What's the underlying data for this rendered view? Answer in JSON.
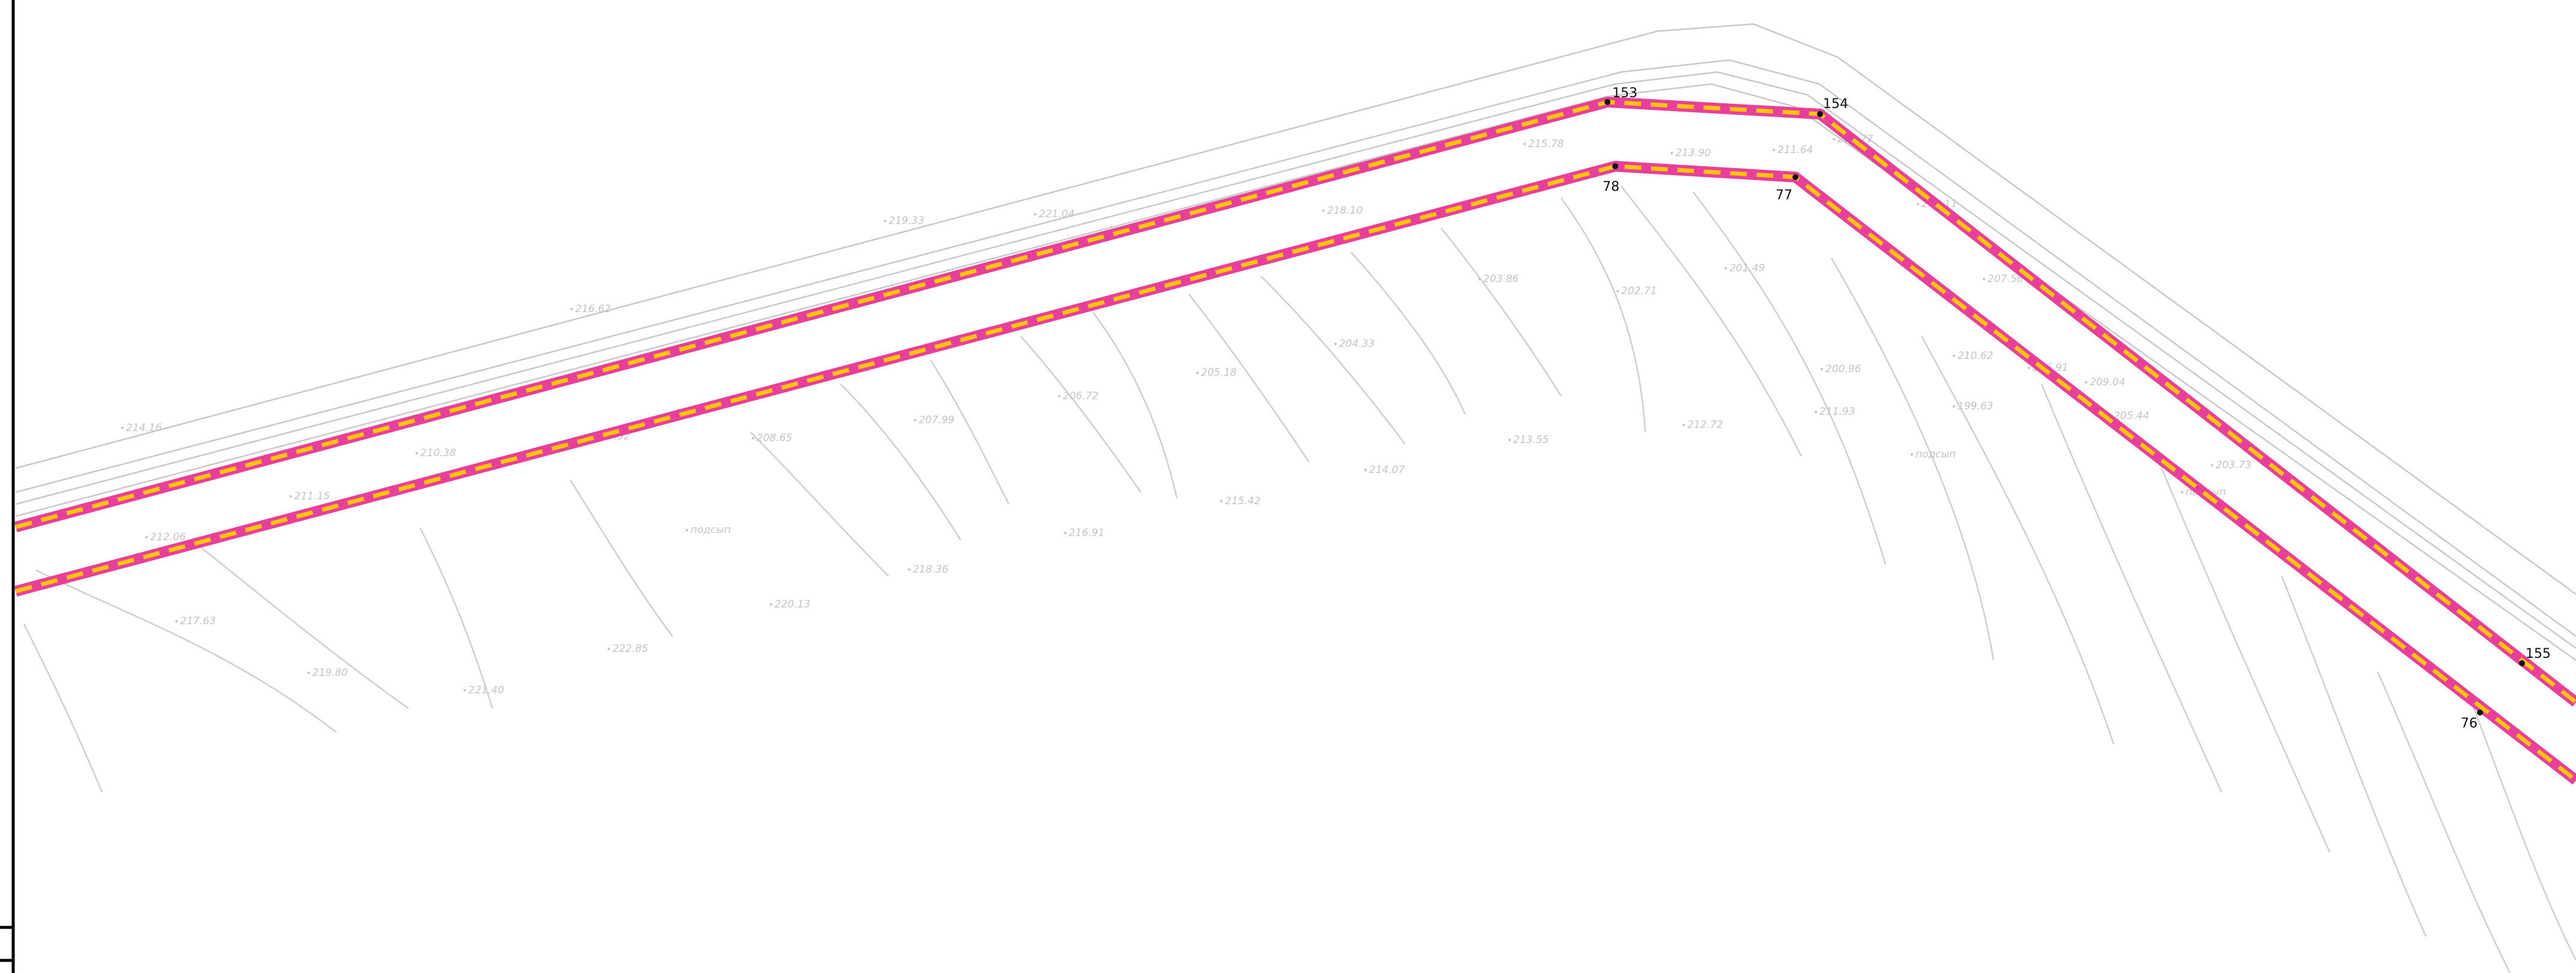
{
  "colors": {
    "boundary_outer": "#e8409a",
    "boundary_inner": "#ffc400",
    "contour": "#cfcfcf",
    "label": "#c4c4c4",
    "point": "#111111"
  },
  "boundaries": [
    {
      "name": "outer-boundary",
      "points": [
        "153",
        "154",
        "155"
      ]
    },
    {
      "name": "inner-boundary",
      "points": [
        "78",
        "77",
        "76"
      ]
    }
  ],
  "boundary_points": [
    {
      "id": "153"
    },
    {
      "id": "154"
    },
    {
      "id": "155"
    },
    {
      "id": "78"
    },
    {
      "id": "77"
    },
    {
      "id": "76"
    }
  ],
  "elevation_labels": [
    "214.16",
    "216.62",
    "219.33",
    "221.04",
    "218.10",
    "215.78",
    "213.90",
    "211.64",
    "209.77",
    "208.11",
    "207.58",
    "206.91",
    "205.44",
    "203.73",
    "212.06",
    "211.15",
    "210.38",
    "209.52",
    "208.65",
    "207.99",
    "206.72",
    "205.18",
    "204.33",
    "203.86",
    "202.71",
    "201.49",
    "200.96",
    "199.63",
    "217.63",
    "219.80",
    "221.40",
    "222.85",
    "220.13",
    "218.36",
    "216.91",
    "215.42",
    "214.07",
    "213.55",
    "212.72",
    "211.93",
    "210.62",
    "209.04",
    "подсып",
    "подсып",
    "подсып"
  ]
}
